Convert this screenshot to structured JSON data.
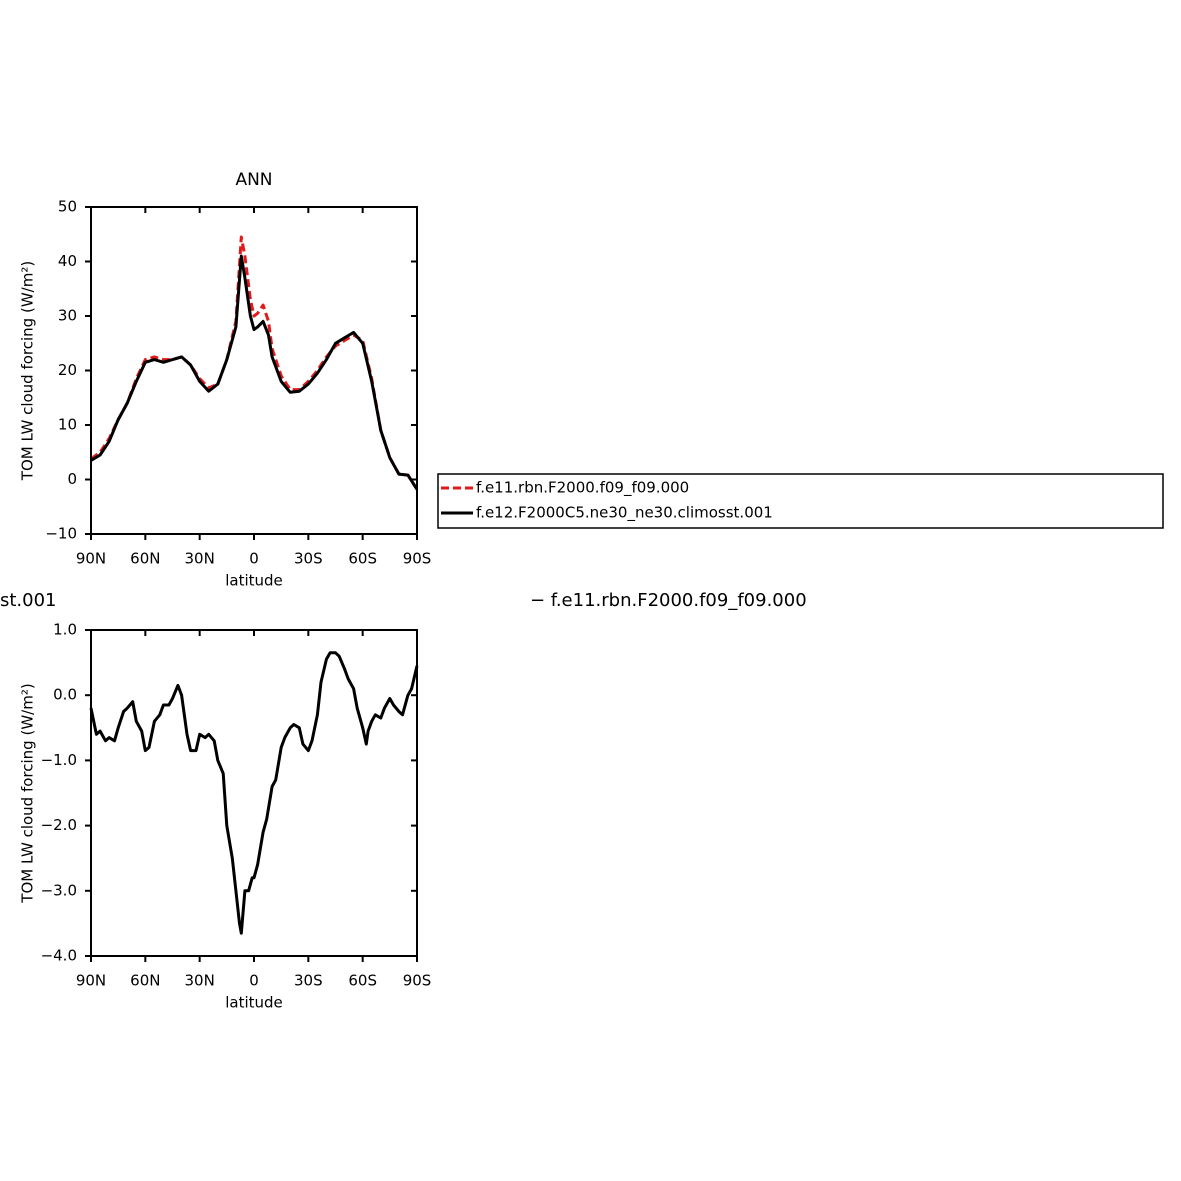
{
  "chart_data": [
    {
      "type": "line",
      "title": "ANN",
      "xlabel": "latitude",
      "ylabel": "TOM LW cloud forcing (W/m²)",
      "x": [
        90,
        85,
        80,
        75,
        70,
        65,
        60,
        55,
        50,
        45,
        40,
        35,
        30,
        25,
        20,
        15,
        10,
        7,
        5,
        2,
        0,
        -2,
        -5,
        -8,
        -10,
        -15,
        -20,
        -25,
        -30,
        -35,
        -40,
        -45,
        -50,
        -55,
        -60,
        -65,
        -70,
        -75,
        -80,
        -85,
        -90
      ],
      "series": [
        {
          "name": "f.e11.rbn.F2000.f09_f09.000",
          "color": "#e31a1c",
          "style": "dashed",
          "values": [
            3.8,
            5,
            7.5,
            11,
            14,
            18.5,
            22,
            22.5,
            22,
            22,
            22.5,
            21,
            18.5,
            16.8,
            17.5,
            22,
            29,
            44.5,
            41,
            33,
            30,
            30.5,
            32,
            29,
            24,
            19,
            16.5,
            16.5,
            18,
            20,
            22.5,
            24.5,
            25.5,
            26.5,
            25.5,
            18.5,
            9,
            4,
            1,
            0.8,
            -1.8
          ]
        },
        {
          "name": "f.e12.F2000C5.ne30_ne30.climosst.001",
          "color": "#000000",
          "style": "solid",
          "values": [
            3.5,
            4.5,
            7,
            11,
            14,
            18,
            21.5,
            22,
            21.5,
            22,
            22.5,
            21,
            18,
            16.2,
            17.5,
            22,
            28,
            41,
            37,
            30,
            27.5,
            28,
            29,
            26.5,
            22.5,
            18,
            16,
            16.2,
            17.5,
            19.5,
            22,
            25,
            26,
            27,
            25,
            18,
            9,
            4,
            1,
            0.8,
            -1.8
          ]
        }
      ],
      "xlim": [
        90,
        -90
      ],
      "xticks": [
        {
          "value": 90,
          "label": "90N"
        },
        {
          "value": 60,
          "label": "60N"
        },
        {
          "value": 30,
          "label": "30N"
        },
        0,
        {
          "value": -30,
          "label": "30S"
        },
        {
          "value": -60,
          "label": "60S"
        },
        {
          "value": -90,
          "label": "90S"
        }
      ],
      "ylim": [
        -10,
        50
      ],
      "yticks": [
        {
          "value": -10,
          "label": "−10"
        },
        0,
        10,
        20,
        30,
        40,
        50
      ],
      "legend": "right"
    },
    {
      "type": "line",
      "left_string": "st.001",
      "right_string": "− f.e11.rbn.F2000.f09_f09.000",
      "xlabel": "latitude",
      "ylabel": "TOM LW cloud forcing (W/m²)",
      "x": [
        90,
        87,
        85,
        82,
        80,
        77,
        75,
        72,
        70,
        67,
        65,
        62,
        60,
        58,
        55,
        52,
        50,
        47,
        45,
        42,
        40,
        37,
        35,
        32,
        30,
        27,
        25,
        22,
        20,
        17,
        15,
        12,
        10,
        8,
        7,
        5,
        3,
        1,
        0,
        -2,
        -5,
        -7,
        -10,
        -12,
        -15,
        -17,
        -20,
        -22,
        -25,
        -27,
        -30,
        -32,
        -35,
        -37,
        -40,
        -42,
        -45,
        -47,
        -50,
        -52,
        -55,
        -57,
        -60,
        -62,
        -63,
        -65,
        -67,
        -70,
        -72,
        -75,
        -77,
        -80,
        -82,
        -85,
        -87,
        -90
      ],
      "series": [
        {
          "color": "#000000",
          "style": "solid",
          "values": [
            -0.2,
            -0.6,
            -0.55,
            -0.7,
            -0.65,
            -0.7,
            -0.5,
            -0.25,
            -0.2,
            -0.1,
            -0.4,
            -0.55,
            -0.85,
            -0.8,
            -0.4,
            -0.3,
            -0.15,
            -0.15,
            -0.05,
            0.15,
            0.0,
            -0.6,
            -0.85,
            -0.85,
            -0.6,
            -0.65,
            -0.6,
            -0.7,
            -1.0,
            -1.2,
            -2.0,
            -2.5,
            -3.0,
            -3.5,
            -3.65,
            -3.0,
            -3.0,
            -2.8,
            -2.8,
            -2.6,
            -2.1,
            -1.9,
            -1.4,
            -1.3,
            -0.8,
            -0.65,
            -0.5,
            -0.45,
            -0.5,
            -0.75,
            -0.85,
            -0.7,
            -0.3,
            0.2,
            0.55,
            0.65,
            0.65,
            0.6,
            0.4,
            0.25,
            0.1,
            -0.2,
            -0.5,
            -0.75,
            -0.55,
            -0.4,
            -0.3,
            -0.35,
            -0.2,
            -0.05,
            -0.15,
            -0.25,
            -0.3,
            0.0,
            0.1,
            0.45
          ]
        }
      ],
      "xlim": [
        90,
        -90
      ],
      "xticks": [
        {
          "value": 90,
          "label": "90N"
        },
        {
          "value": 60,
          "label": "60N"
        },
        {
          "value": 30,
          "label": "30N"
        },
        0,
        {
          "value": -30,
          "label": "30S"
        },
        {
          "value": -60,
          "label": "60S"
        },
        {
          "value": -90,
          "label": "90S"
        }
      ],
      "ylim": [
        -4,
        1
      ],
      "yticks": [
        {
          "value": -4,
          "label": "−4.0"
        },
        {
          "value": -3,
          "label": "−3.0"
        },
        {
          "value": -2,
          "label": "−2.0"
        },
        {
          "value": -1,
          "label": "−1.0"
        },
        {
          "value": 0,
          "label": "0.0"
        },
        {
          "value": 1,
          "label": "1.0"
        }
      ]
    }
  ]
}
